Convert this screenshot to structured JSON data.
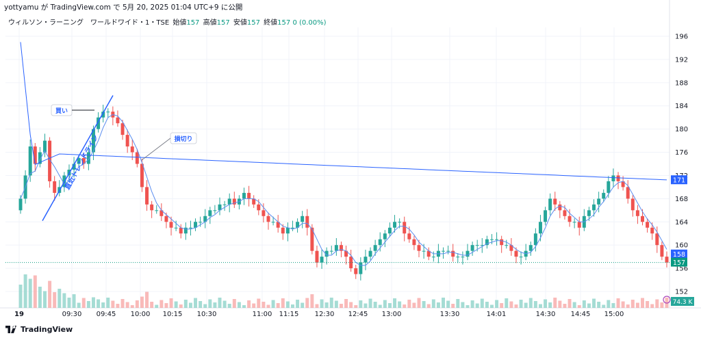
{
  "header": {
    "attribution": "yottyamu が TradingView.com で 5月 20, 2025 01:04 UTC+9 に公開"
  },
  "legend": {
    "symbol": "ウィルソン・ラーニング　ワールドワイド・1・TSE",
    "open_label": "始値",
    "open": "157",
    "high_label": "高値",
    "high": "157",
    "low_label": "安値",
    "low": "157",
    "close_label": "終値",
    "close": "157",
    "change": "0 (0.00%)"
  },
  "footer": {
    "brand": "TradingView"
  },
  "colors": {
    "up": "#26a69a",
    "down": "#ef5350",
    "vwap": "#2962ff",
    "ma": "#5b8def",
    "vol_up": "#8fd3c9",
    "vol_down": "#f7a9a8",
    "grid": "#f0f3fa"
  },
  "chart_data": {
    "type": "candlestick",
    "y_axis_ticks": [
      "196",
      "192",
      "188",
      "184",
      "180",
      "176",
      "172",
      "168",
      "164",
      "160",
      "156",
      "152"
    ],
    "ylim": [
      150,
      199
    ],
    "x_axis_ticks": [
      "19",
      "09:30",
      "09:45",
      "10:00",
      "10:15",
      "10:30",
      "11:00",
      "11:15",
      "12:30",
      "12:45",
      "13:00",
      "13:30",
      "14:01",
      "14:30",
      "14:45",
      "15:00"
    ],
    "price_tags": [
      {
        "label": "171",
        "value": 171.2,
        "color": "#2962ff"
      },
      {
        "label": "158",
        "value": 158.4,
        "color": "#2962ff"
      },
      {
        "label": "157",
        "value": 157,
        "color": "#089981"
      }
    ],
    "volume_tag": "74.3 K",
    "annotations": {
      "buy": "買い",
      "stop_loss": "損切り",
      "trendline": "直近トレンドライン"
    },
    "series": [
      {
        "name": "price",
        "close": [
          168,
          172,
          177,
          174,
          176,
          178,
          171,
          169,
          170,
          172,
          173,
          174,
          175,
          174,
          176,
          180,
          182,
          183,
          183,
          182,
          181,
          179,
          177,
          176,
          174,
          170,
          167,
          166,
          166,
          165,
          164,
          163,
          163,
          162,
          163,
          163,
          164,
          164,
          165,
          166,
          166,
          167,
          167,
          168,
          167,
          168,
          169,
          168,
          167,
          166,
          165,
          164,
          164,
          163,
          162,
          163,
          163,
          164,
          165,
          163,
          159,
          157,
          158,
          159,
          159,
          160,
          159,
          158,
          156,
          155,
          157,
          158,
          159,
          160,
          161,
          162,
          163,
          164,
          164,
          162,
          161,
          160,
          159,
          159,
          158,
          158,
          159,
          159,
          159,
          158,
          158,
          158,
          159,
          160,
          160,
          160,
          161,
          161,
          161,
          160,
          160,
          159,
          158,
          158,
          159,
          160,
          162,
          164,
          166,
          168,
          167,
          166,
          165,
          164,
          164,
          163,
          165,
          166,
          167,
          168,
          169,
          171,
          172,
          171,
          170,
          168,
          166,
          165,
          164,
          163,
          162,
          160,
          158,
          157
        ]
      }
    ]
  }
}
